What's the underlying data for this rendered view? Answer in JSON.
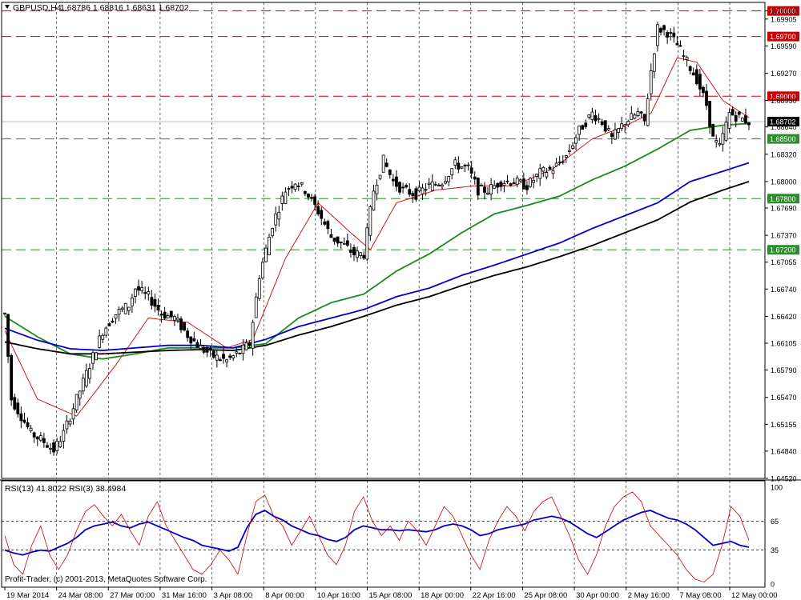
{
  "header": {
    "title": "GBPUSD,H4",
    "ohlc": "1.68786 1.68816 1.68631 1.68702"
  },
  "rsi_header": "RSI(13) 41.8022  RSI(3) 38.4984",
  "copyright": "Profit-Trader, (c) 2001-2013, MetaQuotes Software Corp.",
  "colors": {
    "resistance": "#cc0000",
    "support": "#2e8b2e",
    "ma_fast": "#cc0000",
    "ma_mid": "#1a8a1a",
    "ma_blue": "#0000cc",
    "ma_black": "#000000",
    "rsi13": "#0000cc",
    "rsi3": "#cc0000"
  },
  "chart_data": [
    {
      "type": "candlestick",
      "symbol": "GBPUSD",
      "timeframe": "H4",
      "last_price": 1.68702,
      "ylim": [
        1.6452,
        1.701
      ],
      "y_ticks": [
        "1.70000",
        "1.69905",
        "1.69590",
        "1.69270",
        "1.68950",
        "1.68640",
        "1.68320",
        "1.68000",
        "1.67690",
        "1.67370",
        "1.67055",
        "1.66740",
        "1.66420",
        "1.66105",
        "1.65790",
        "1.65470",
        "1.65155",
        "1.64840",
        "1.64520"
      ],
      "x_ticks": [
        "19 Mar 2014",
        "24 Mar 08:00",
        "27 Mar 00:00",
        "31 Mar 16:00",
        "3 Apr 08:00",
        "8 Apr 00:00",
        "10 Apr 16:00",
        "15 Apr 08:00",
        "18 Apr 00:00",
        "22 Apr 16:00",
        "25 Apr 08:00",
        "30 Apr 00:00",
        "2 May 16:00",
        "7 May 08:00",
        "12 May 00:00"
      ],
      "horizontal_levels": [
        {
          "price": "1.70000",
          "role": "resistance"
        },
        {
          "price": "1.69700",
          "role": "resistance"
        },
        {
          "price": "1.69000",
          "role": "resistance"
        },
        {
          "price": "1.68500",
          "role": "support"
        },
        {
          "price": "1.67800",
          "role": "support"
        },
        {
          "price": "1.67200",
          "role": "support"
        }
      ],
      "price_path": [
        [
          0,
          1.6645
        ],
        [
          2,
          1.6545
        ],
        [
          5,
          1.6525
        ],
        [
          8,
          1.6505
        ],
        [
          12,
          1.6495
        ],
        [
          15,
          1.6485
        ],
        [
          18,
          1.6505
        ],
        [
          22,
          1.6545
        ],
        [
          26,
          1.6585
        ],
        [
          30,
          1.6625
        ],
        [
          34,
          1.6645
        ],
        [
          38,
          1.6655
        ],
        [
          40,
          1.6675
        ],
        [
          44,
          1.6665
        ],
        [
          48,
          1.6645
        ],
        [
          52,
          1.664
        ],
        [
          56,
          1.662
        ],
        [
          60,
          1.6605
        ],
        [
          64,
          1.6595
        ],
        [
          68,
          1.659
        ],
        [
          72,
          1.66
        ],
        [
          75,
          1.661
        ],
        [
          78,
          1.669
        ],
        [
          82,
          1.675
        ],
        [
          86,
          1.679
        ],
        [
          89,
          1.68
        ],
        [
          92,
          1.679
        ],
        [
          96,
          1.6765
        ],
        [
          100,
          1.6735
        ],
        [
          104,
          1.6725
        ],
        [
          107,
          1.6715
        ],
        [
          110,
          1.6715
        ],
        [
          113,
          1.679
        ],
        [
          116,
          1.6825
        ],
        [
          119,
          1.68
        ],
        [
          122,
          1.679
        ],
        [
          126,
          1.6785
        ],
        [
          130,
          1.6795
        ],
        [
          134,
          1.68
        ],
        [
          138,
          1.682
        ],
        [
          142,
          1.6815
        ],
        [
          145,
          1.679
        ],
        [
          148,
          1.679
        ],
        [
          152,
          1.68
        ],
        [
          156,
          1.68
        ],
        [
          160,
          1.6795
        ],
        [
          164,
          1.681
        ],
        [
          168,
          1.6815
        ],
        [
          172,
          1.683
        ],
        [
          176,
          1.686
        ],
        [
          180,
          1.688
        ],
        [
          183,
          1.687
        ],
        [
          186,
          1.685
        ],
        [
          190,
          1.687
        ],
        [
          194,
          1.688
        ],
        [
          196,
          1.687
        ],
        [
          198,
          1.693
        ],
        [
          200,
          1.698
        ],
        [
          203,
          1.6975
        ],
        [
          206,
          1.696
        ],
        [
          209,
          1.694
        ],
        [
          212,
          1.692
        ],
        [
          215,
          1.689
        ],
        [
          217,
          1.685
        ],
        [
          219,
          1.684
        ],
        [
          222,
          1.688
        ],
        [
          225,
          1.6875
        ],
        [
          228,
          1.687
        ]
      ],
      "moving_averages": [
        {
          "color": "ma_fast",
          "points": [
            [
              0,
              1.6625
            ],
            [
              10,
              1.6545
            ],
            [
              22,
              1.6525
            ],
            [
              34,
              1.6585
            ],
            [
              44,
              1.664
            ],
            [
              56,
              1.6635
            ],
            [
              68,
              1.6605
            ],
            [
              76,
              1.6615
            ],
            [
              86,
              1.671
            ],
            [
              96,
              1.6775
            ],
            [
              106,
              1.674
            ],
            [
              112,
              1.672
            ],
            [
              120,
              1.6775
            ],
            [
              132,
              1.679
            ],
            [
              144,
              1.6795
            ],
            [
              156,
              1.6795
            ],
            [
              168,
              1.6815
            ],
            [
              180,
              1.685
            ],
            [
              190,
              1.6865
            ],
            [
              198,
              1.688
            ],
            [
              206,
              1.6945
            ],
            [
              212,
              1.694
            ],
            [
              220,
              1.6895
            ],
            [
              228,
              1.6875
            ]
          ]
        },
        {
          "color": "ma_mid",
          "points": [
            [
              0,
              1.6642
            ],
            [
              10,
              1.6618
            ],
            [
              20,
              1.6598
            ],
            [
              30,
              1.6592
            ],
            [
              40,
              1.6598
            ],
            [
              50,
              1.6605
            ],
            [
              60,
              1.6605
            ],
            [
              70,
              1.6605
            ],
            [
              80,
              1.661
            ],
            [
              90,
              1.664
            ],
            [
              100,
              1.6658
            ],
            [
              110,
              1.6668
            ],
            [
              120,
              1.6695
            ],
            [
              130,
              1.6715
            ],
            [
              140,
              1.674
            ],
            [
              150,
              1.6762
            ],
            [
              160,
              1.6772
            ],
            [
              170,
              1.6783
            ],
            [
              180,
              1.6802
            ],
            [
              190,
              1.6818
            ],
            [
              200,
              1.6838
            ],
            [
              210,
              1.686
            ],
            [
              220,
              1.6866
            ],
            [
              228,
              1.6868
            ]
          ]
        },
        {
          "color": "ma_blue",
          "points": [
            [
              0,
              1.6628
            ],
            [
              10,
              1.6614
            ],
            [
              20,
              1.6604
            ],
            [
              30,
              1.6602
            ],
            [
              40,
              1.6605
            ],
            [
              50,
              1.6608
            ],
            [
              60,
              1.6608
            ],
            [
              70,
              1.6605
            ],
            [
              80,
              1.6615
            ],
            [
              90,
              1.663
            ],
            [
              100,
              1.664
            ],
            [
              110,
              1.665
            ],
            [
              120,
              1.6665
            ],
            [
              130,
              1.6675
            ],
            [
              140,
              1.669
            ],
            [
              150,
              1.6702
            ],
            [
              160,
              1.6715
            ],
            [
              170,
              1.6728
            ],
            [
              180,
              1.6745
            ],
            [
              190,
              1.676
            ],
            [
              200,
              1.6775
            ],
            [
              210,
              1.68
            ],
            [
              220,
              1.6812
            ],
            [
              228,
              1.6822
            ]
          ]
        },
        {
          "color": "ma_black",
          "points": [
            [
              0,
              1.6612
            ],
            [
              10,
              1.6604
            ],
            [
              20,
              1.6598
            ],
            [
              30,
              1.6598
            ],
            [
              40,
              1.66
            ],
            [
              50,
              1.6602
            ],
            [
              60,
              1.6603
            ],
            [
              70,
              1.6602
            ],
            [
              80,
              1.6608
            ],
            [
              90,
              1.662
            ],
            [
              100,
              1.663
            ],
            [
              110,
              1.6642
            ],
            [
              120,
              1.6655
            ],
            [
              130,
              1.6665
            ],
            [
              140,
              1.6678
            ],
            [
              150,
              1.669
            ],
            [
              160,
              1.67
            ],
            [
              170,
              1.6712
            ],
            [
              180,
              1.6725
            ],
            [
              190,
              1.674
            ],
            [
              200,
              1.6755
            ],
            [
              210,
              1.6776
            ],
            [
              220,
              1.679
            ],
            [
              228,
              1.68
            ]
          ]
        }
      ]
    },
    {
      "type": "line",
      "name": "RSI",
      "ylim": [
        0,
        100
      ],
      "y_ticks": [
        "100",
        "65",
        "35",
        "0"
      ],
      "levels": [
        65,
        35
      ],
      "series": [
        {
          "color": "rsi13",
          "values": [
            35,
            32,
            30,
            33,
            35,
            34,
            38,
            42,
            48,
            56,
            60,
            62,
            64,
            60,
            58,
            62,
            64,
            60,
            56,
            52,
            48,
            45,
            40,
            38,
            36,
            34,
            38,
            58,
            72,
            76,
            70,
            66,
            60,
            56,
            52,
            50,
            46,
            44,
            48,
            56,
            60,
            58,
            56,
            56,
            55,
            56,
            55,
            54,
            56,
            60,
            62,
            60,
            56,
            50,
            52,
            56,
            58,
            60,
            62,
            66,
            68,
            70,
            68,
            64,
            58,
            52,
            48,
            54,
            60,
            66,
            70,
            74,
            76,
            72,
            68,
            66,
            62,
            56,
            48,
            40,
            42,
            44,
            40,
            38
          ]
        },
        {
          "color": "rsi3",
          "values": [
            50,
            20,
            10,
            40,
            60,
            30,
            15,
            30,
            55,
            75,
            82,
            70,
            60,
            72,
            55,
            40,
            70,
            85,
            60,
            45,
            30,
            15,
            10,
            20,
            35,
            25,
            10,
            50,
            85,
            92,
            70,
            60,
            40,
            55,
            70,
            50,
            30,
            20,
            40,
            75,
            90,
            65,
            50,
            60,
            45,
            65,
            55,
            40,
            60,
            80,
            70,
            50,
            30,
            15,
            45,
            65,
            80,
            70,
            55,
            75,
            85,
            90,
            70,
            50,
            25,
            10,
            30,
            60,
            80,
            90,
            95,
            85,
            60,
            50,
            40,
            30,
            15,
            5,
            2,
            10,
            40,
            80,
            70,
            45
          ]
        }
      ]
    }
  ]
}
